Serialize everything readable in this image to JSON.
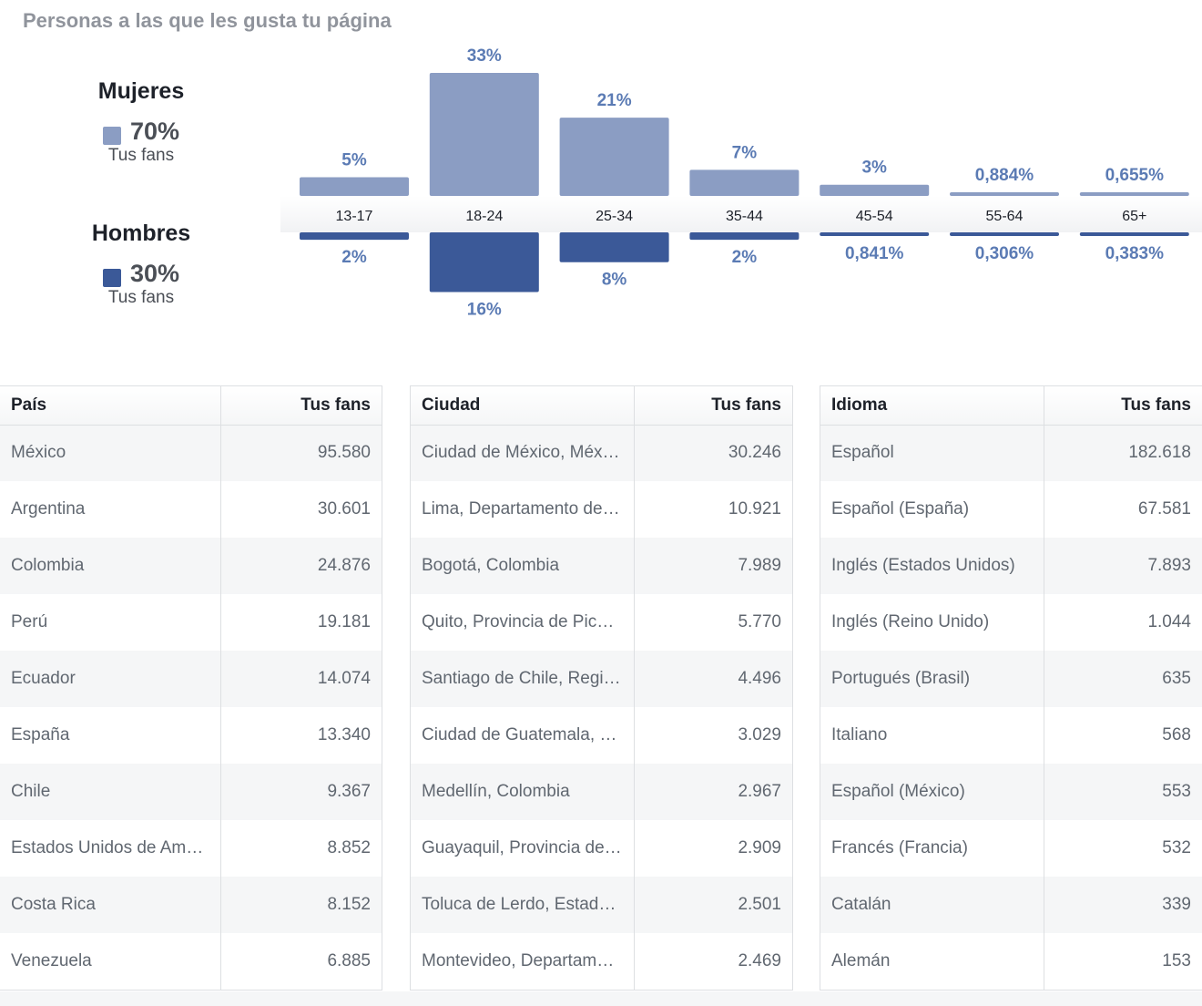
{
  "page_title": "Personas a las que les gusta tu página",
  "legend": {
    "women": {
      "label": "Mujeres",
      "pct": "70%",
      "sub": "Tus fans",
      "color": "#8b9dc3"
    },
    "men": {
      "label": "Hombres",
      "pct": "30%",
      "sub": "Tus fans",
      "color": "#3b5998"
    }
  },
  "chart_data": {
    "type": "bar",
    "categories": [
      "13-17",
      "18-24",
      "25-34",
      "35-44",
      "45-54",
      "55-64",
      "65+"
    ],
    "series": [
      {
        "name": "Mujeres",
        "values": [
          5,
          33,
          21,
          7,
          3,
          0.884,
          0.655
        ],
        "labels": [
          "5%",
          "33%",
          "21%",
          "7%",
          "3%",
          "0,884%",
          "0,655%"
        ],
        "color": "#8b9dc3"
      },
      {
        "name": "Hombres",
        "values": [
          2,
          16,
          8,
          2,
          0.841,
          0.306,
          0.383
        ],
        "labels": [
          "2%",
          "16%",
          "8%",
          "2%",
          "0,841%",
          "0,306%",
          "0,383%"
        ],
        "color": "#3b5998"
      }
    ],
    "label_color": "#5b7bb4"
  },
  "tables": [
    {
      "col1": "País",
      "col2": "Tus fans",
      "rows": [
        [
          "México",
          "95.580"
        ],
        [
          "Argentina",
          "30.601"
        ],
        [
          "Colombia",
          "24.876"
        ],
        [
          "Perú",
          "19.181"
        ],
        [
          "Ecuador",
          "14.074"
        ],
        [
          "España",
          "13.340"
        ],
        [
          "Chile",
          "9.367"
        ],
        [
          "Estados Unidos de América",
          "8.852"
        ],
        [
          "Costa Rica",
          "8.152"
        ],
        [
          "Venezuela",
          "6.885"
        ]
      ]
    },
    {
      "col1": "Ciudad",
      "col2": "Tus fans",
      "rows": [
        [
          "Ciudad de México, México",
          "30.246"
        ],
        [
          "Lima, Departamento de Lima",
          "10.921"
        ],
        [
          "Bogotá, Colombia",
          "7.989"
        ],
        [
          "Quito, Provincia de Pichincha",
          "5.770"
        ],
        [
          "Santiago de Chile, Región Metropolitana",
          "4.496"
        ],
        [
          "Ciudad de Guatemala, Guatemala",
          "3.029"
        ],
        [
          "Medellín, Colombia",
          "2.967"
        ],
        [
          "Guayaquil, Provincia del Guayas",
          "2.909"
        ],
        [
          "Toluca de Lerdo, Estado de México",
          "2.501"
        ],
        [
          "Montevideo, Departamento de Montevideo",
          "2.469"
        ]
      ]
    },
    {
      "col1": "Idioma",
      "col2": "Tus fans",
      "rows": [
        [
          "Español",
          "182.618"
        ],
        [
          "Español (España)",
          "67.581"
        ],
        [
          "Inglés (Estados Unidos)",
          "7.893"
        ],
        [
          "Inglés (Reino Unido)",
          "1.044"
        ],
        [
          "Portugués (Brasil)",
          "635"
        ],
        [
          "Italiano",
          "568"
        ],
        [
          "Español (México)",
          "553"
        ],
        [
          "Francés (Francia)",
          "532"
        ],
        [
          "Catalán",
          "339"
        ],
        [
          "Alemán",
          "153"
        ]
      ]
    }
  ]
}
